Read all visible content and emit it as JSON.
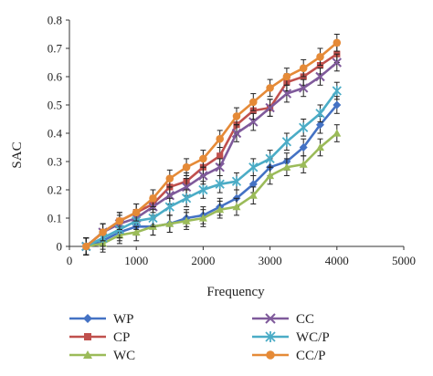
{
  "chart_data": {
    "type": "line",
    "xlabel": "Frequency",
    "ylabel": "SAC",
    "xlim": [
      0,
      5000
    ],
    "ylim": [
      0,
      0.8
    ],
    "xticks": [
      0,
      1000,
      2000,
      3000,
      4000,
      5000
    ],
    "yticks": [
      0,
      0.1,
      0.2,
      0.3,
      0.4,
      0.5,
      0.6,
      0.7,
      0.8
    ],
    "xtick_labels": [
      "0",
      "1000",
      "2000",
      "3000",
      "4000",
      "5000"
    ],
    "ytick_labels": [
      "0",
      "0.1",
      "0.2",
      "0.3",
      "0.4",
      "0.5",
      "0.6",
      "0.7",
      "0.8"
    ],
    "grid": false,
    "legend": "bottom",
    "x": [
      250,
      500,
      750,
      1000,
      1250,
      1500,
      1750,
      2000,
      2250,
      2500,
      2750,
      3000,
      3250,
      3500,
      3750,
      4000
    ],
    "series": [
      {
        "name": "WP",
        "color": "#4472c4",
        "marker": "diamond",
        "error": 0.03,
        "values": [
          0.0,
          0.02,
          0.05,
          0.07,
          0.07,
          0.08,
          0.1,
          0.11,
          0.14,
          0.17,
          0.22,
          0.28,
          0.3,
          0.35,
          0.43,
          0.5
        ]
      },
      {
        "name": "CP",
        "color": "#c0504d",
        "marker": "square",
        "error": 0.03,
        "values": [
          0.0,
          0.05,
          0.09,
          0.12,
          0.15,
          0.21,
          0.23,
          0.28,
          0.32,
          0.43,
          0.48,
          0.49,
          0.58,
          0.6,
          0.64,
          0.68
        ]
      },
      {
        "name": "WC",
        "color": "#9bbb59",
        "marker": "triangle",
        "error": 0.03,
        "values": [
          0.0,
          0.01,
          0.04,
          0.05,
          0.07,
          0.08,
          0.09,
          0.1,
          0.13,
          0.14,
          0.18,
          0.25,
          0.28,
          0.29,
          0.35,
          0.4
        ]
      },
      {
        "name": "CC",
        "color": "#7f5a9b",
        "marker": "x",
        "error": 0.03,
        "values": [
          0.0,
          0.05,
          0.08,
          0.1,
          0.14,
          0.18,
          0.21,
          0.25,
          0.28,
          0.4,
          0.44,
          0.49,
          0.54,
          0.56,
          0.6,
          0.65
        ]
      },
      {
        "name": "WC/P",
        "color": "#4bacc6",
        "marker": "star",
        "error": 0.03,
        "values": [
          0.0,
          0.03,
          0.06,
          0.09,
          0.1,
          0.14,
          0.17,
          0.2,
          0.22,
          0.23,
          0.28,
          0.31,
          0.37,
          0.42,
          0.47,
          0.55
        ]
      },
      {
        "name": "CC/P",
        "color": "#e58a37",
        "marker": "circle",
        "error": 0.03,
        "values": [
          0.0,
          0.05,
          0.09,
          0.12,
          0.17,
          0.24,
          0.28,
          0.31,
          0.38,
          0.46,
          0.51,
          0.56,
          0.6,
          0.63,
          0.67,
          0.72
        ]
      }
    ]
  }
}
